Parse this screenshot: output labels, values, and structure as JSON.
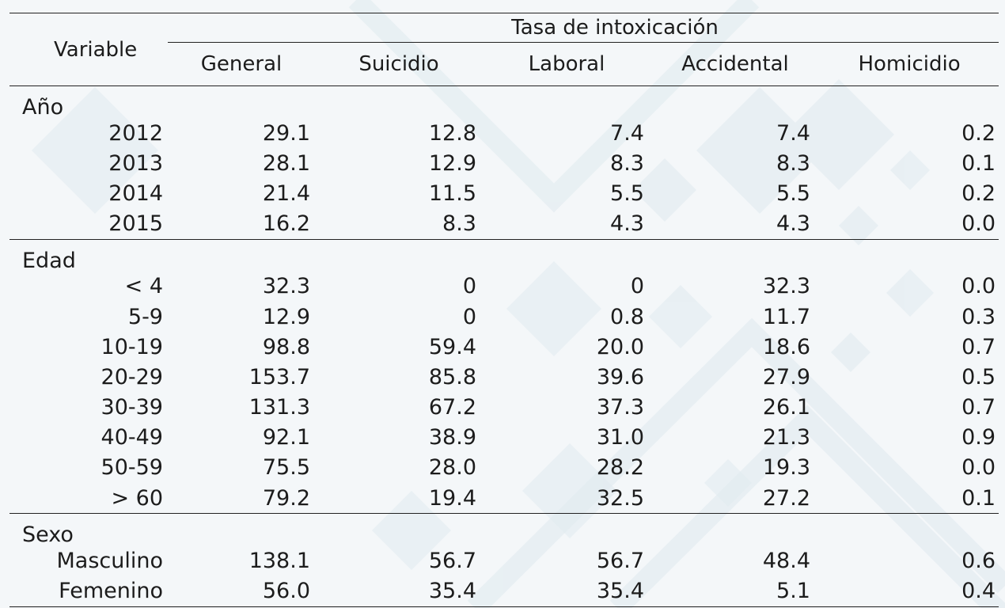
{
  "header": {
    "variable_label": "Variable",
    "group_label": "Tasa de intoxicación",
    "columns": [
      "General",
      "Suicidio",
      "Laboral",
      "Accidental",
      "Homicidio"
    ]
  },
  "sections": [
    {
      "label": "Año",
      "rows": [
        {
          "label": "2012",
          "values": [
            "29.1",
            "12.8",
            "7.4",
            "7.4",
            "0.2"
          ]
        },
        {
          "label": "2013",
          "values": [
            "28.1",
            "12.9",
            "8.3",
            "8.3",
            "0.1"
          ]
        },
        {
          "label": "2014",
          "values": [
            "21.4",
            "11.5",
            "5.5",
            "5.5",
            "0.2"
          ]
        },
        {
          "label": "2015",
          "values": [
            "16.2",
            "8.3",
            "4.3",
            "4.3",
            "0.0"
          ]
        }
      ]
    },
    {
      "label": "Edad",
      "rows": [
        {
          "label": "< 4",
          "values": [
            "32.3",
            "0",
            "0",
            "32.3",
            "0.0"
          ]
        },
        {
          "label": "5-9",
          "values": [
            "12.9",
            "0",
            "0.8",
            "11.7",
            "0.3"
          ]
        },
        {
          "label": "10-19",
          "values": [
            "98.8",
            "59.4",
            "20.0",
            "18.6",
            "0.7"
          ]
        },
        {
          "label": "20-29",
          "values": [
            "153.7",
            "85.8",
            "39.6",
            "27.9",
            "0.5"
          ]
        },
        {
          "label": "30-39",
          "values": [
            "131.3",
            "67.2",
            "37.3",
            "26.1",
            "0.7"
          ]
        },
        {
          "label": "40-49",
          "values": [
            "92.1",
            "38.9",
            "31.0",
            "21.3",
            "0.9"
          ]
        },
        {
          "label": "50-59",
          "values": [
            "75.5",
            "28.0",
            "28.2",
            "19.3",
            "0.0"
          ]
        },
        {
          "label": "> 60",
          "values": [
            "79.2",
            "19.4",
            "32.5",
            "27.2",
            "0.1"
          ]
        }
      ]
    },
    {
      "label": "Sexo",
      "rows": [
        {
          "label": "Masculino",
          "values": [
            "138.1",
            "56.7",
            "56.7",
            "48.4",
            "0.6"
          ]
        },
        {
          "label": "Femenino",
          "values": [
            "56.0",
            "35.4",
            "35.4",
            "5.1",
            "0.4"
          ]
        }
      ]
    }
  ],
  "colors": {
    "background": "#f4f7f9",
    "pattern": "#e3ecf1",
    "rule": "#222222",
    "text": "#1c1c1c"
  }
}
